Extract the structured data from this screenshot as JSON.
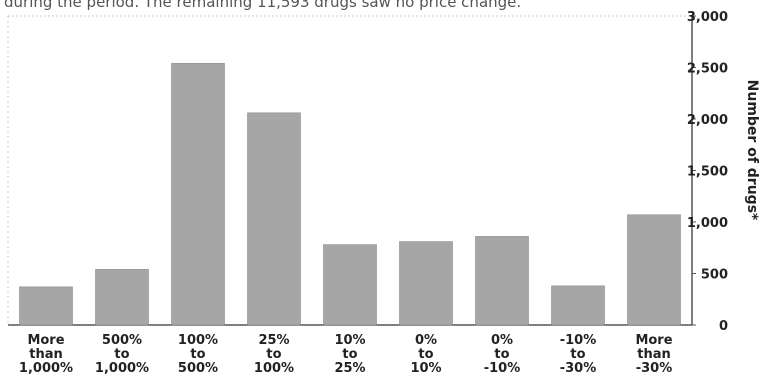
{
  "caption": "during the period. The remaining 11,593 drugs saw no price change.",
  "chart_data": {
    "type": "bar",
    "title": "",
    "xlabel": "",
    "ylabel": "Number of drugs*",
    "ylim": [
      0,
      3000
    ],
    "yticks": [
      "0",
      "500",
      "1,000",
      "1,500",
      "2,000",
      "2,500",
      "3,000"
    ],
    "y_axis_side": "right",
    "bar_color": "#a6a6a6",
    "categories": [
      [
        "More",
        "than",
        "1,000%"
      ],
      [
        "500%",
        "to",
        "1,000%"
      ],
      [
        "100%",
        "to",
        "500%"
      ],
      [
        "25%",
        "to",
        "100%"
      ],
      [
        "10%",
        "to",
        "25%"
      ],
      [
        "0%",
        "to",
        "10%"
      ],
      [
        "0%",
        "to",
        "-10%"
      ],
      [
        "-10%",
        "to",
        "-30%"
      ],
      [
        "More",
        "than",
        "-30%"
      ]
    ],
    "values": [
      370,
      540,
      2540,
      2060,
      780,
      810,
      860,
      380,
      1070
    ]
  }
}
